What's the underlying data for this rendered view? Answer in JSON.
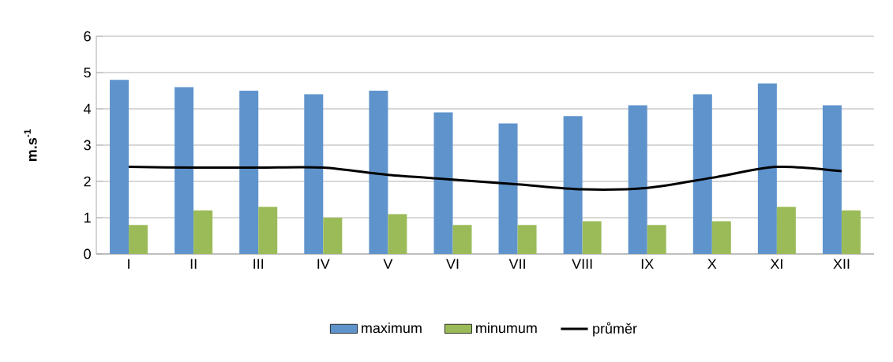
{
  "chart_data": {
    "type": "bar",
    "ylabel": "m.s$^{-1}$",
    "categories": [
      "I",
      "II",
      "III",
      "IV",
      "V",
      "VI",
      "VII",
      "VIII",
      "IX",
      "X",
      "XI",
      "XII"
    ],
    "series": [
      {
        "name": "maximum",
        "color": "#5e93cc",
        "values": [
          4.8,
          4.6,
          4.5,
          4.4,
          4.5,
          3.9,
          3.6,
          3.8,
          4.1,
          4.4,
          4.7,
          4.1
        ]
      },
      {
        "name": "minumum",
        "color": "#9bbb59",
        "values": [
          0.8,
          1.2,
          1.3,
          1.0,
          1.1,
          0.8,
          0.8,
          0.9,
          0.8,
          0.9,
          1.3,
          1.2
        ]
      },
      {
        "name": "průměr",
        "color": "#000000",
        "type": "line",
        "values": [
          2.4,
          2.38,
          2.38,
          2.38,
          2.18,
          2.05,
          1.92,
          1.78,
          1.82,
          2.1,
          2.4,
          2.28
        ]
      }
    ],
    "ylim": [
      0,
      6
    ],
    "yticks": [
      0,
      1,
      2,
      3,
      4,
      5,
      6
    ],
    "grid": "y",
    "legend": "bottom"
  }
}
